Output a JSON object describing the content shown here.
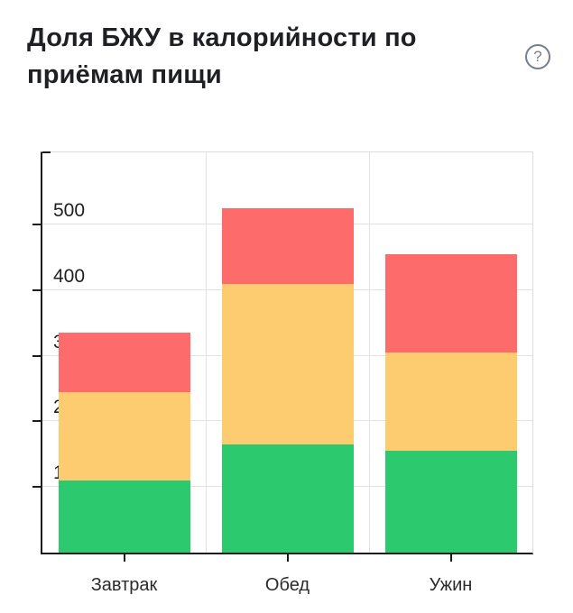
{
  "header": {
    "title": "Доля БЖУ в калорийности по приёмам пищи",
    "help_icon_glyph": "?"
  },
  "chart_data": {
    "type": "bar",
    "stacked": true,
    "title": "Доля БЖУ в калорийности по приёмам пищи",
    "categories": [
      "Завтрак",
      "Обед",
      "Ужин"
    ],
    "series": [
      {
        "name": "green-bottom-segment",
        "color": "#2dc96f",
        "values": [
          110,
          165,
          155
        ]
      },
      {
        "name": "yellow-middle-segment",
        "color": "#fdcb70",
        "values": [
          135,
          245,
          150
        ]
      },
      {
        "name": "red-top-segment",
        "color": "#fd6b6b",
        "values": [
          90,
          115,
          150
        ]
      }
    ],
    "totals": [
      335,
      525,
      455
    ],
    "xlabel": "",
    "ylabel": "",
    "ylim": [
      0,
      610
    ],
    "yticks": [
      100,
      200,
      300,
      400,
      500
    ],
    "grid": true,
    "legend": "none"
  },
  "colors": {
    "background": "#ffffff",
    "axis": "#1c1c1c",
    "grid": "#e2e2e2",
    "tick_label": "#212121",
    "title": "#1f2023",
    "help_icon": "#74808f"
  }
}
